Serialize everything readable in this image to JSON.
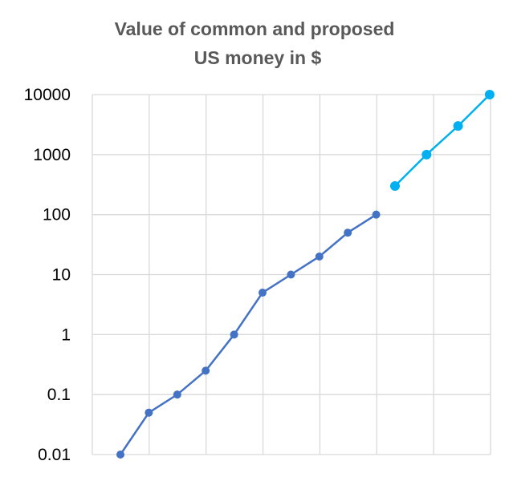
{
  "chart_data": {
    "type": "line",
    "title_lines": [
      "Value of common and proposed",
      "US money in $"
    ],
    "y_scale": "log",
    "ylim": [
      0.01,
      10000
    ],
    "y_ticks": [
      "0.01",
      "0.1",
      "1",
      "10",
      "100",
      "1000",
      "10000"
    ],
    "x_tick_labels": [],
    "grid": true,
    "legend": "none",
    "series": [
      {
        "color": "#4472c4",
        "values": [
          0.01,
          0.05,
          0.1,
          0.25,
          1,
          5,
          10,
          20,
          50,
          100
        ]
      },
      {
        "color": "#00b0f0",
        "values": [
          300,
          1000,
          3000,
          10000
        ]
      }
    ]
  }
}
